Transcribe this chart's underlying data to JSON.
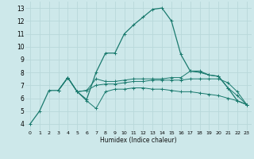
{
  "bg_color": "#cde8ea",
  "grid_color": "#b8d8da",
  "line_color": "#1a7a6e",
  "xlabel": "Humidex (Indice chaleur)",
  "xlim": [
    -0.5,
    23.5
  ],
  "ylim": [
    3.5,
    13.5
  ],
  "xticks": [
    0,
    1,
    2,
    3,
    4,
    5,
    6,
    7,
    8,
    9,
    10,
    11,
    12,
    13,
    14,
    15,
    16,
    17,
    18,
    19,
    20,
    21,
    22,
    23
  ],
  "yticks": [
    4,
    5,
    6,
    7,
    8,
    9,
    10,
    11,
    12,
    13
  ],
  "series": [
    {
      "x": [
        0,
        1,
        2,
        3,
        4,
        5,
        6,
        7,
        8,
        9,
        10,
        11,
        12,
        13,
        14,
        15,
        16,
        17,
        18,
        19,
        20,
        21,
        22,
        23
      ],
      "y": [
        4.0,
        5.0,
        6.6,
        6.6,
        7.6,
        6.5,
        5.9,
        8.0,
        9.5,
        9.5,
        11.0,
        11.7,
        12.3,
        12.9,
        13.0,
        12.0,
        9.4,
        8.1,
        8.1,
        7.8,
        7.7,
        6.8,
        5.8,
        5.5
      ]
    },
    {
      "x": [
        3,
        4,
        5,
        6,
        7,
        8,
        9,
        10,
        11,
        12,
        13,
        14,
        15,
        16,
        17,
        18,
        19,
        20,
        21,
        22,
        23
      ],
      "y": [
        6.6,
        7.6,
        6.5,
        6.6,
        7.5,
        7.3,
        7.3,
        7.4,
        7.5,
        7.5,
        7.5,
        7.5,
        7.6,
        7.6,
        8.1,
        8.0,
        7.8,
        7.7,
        6.8,
        6.2,
        5.5
      ]
    },
    {
      "x": [
        3,
        4,
        5,
        6,
        7,
        8,
        9,
        10,
        11,
        12,
        13,
        14,
        15,
        16,
        17,
        18,
        19,
        20,
        21,
        22,
        23
      ],
      "y": [
        6.6,
        7.6,
        6.5,
        6.6,
        7.0,
        7.1,
        7.1,
        7.2,
        7.3,
        7.3,
        7.4,
        7.4,
        7.4,
        7.4,
        7.5,
        7.5,
        7.5,
        7.5,
        7.2,
        6.5,
        5.5
      ]
    },
    {
      "x": [
        3,
        4,
        5,
        6,
        7,
        8,
        9,
        10,
        11,
        12,
        13,
        14,
        15,
        16,
        17,
        18,
        19,
        20,
        21,
        22,
        23
      ],
      "y": [
        6.6,
        7.6,
        6.5,
        5.8,
        5.2,
        6.5,
        6.7,
        6.7,
        6.8,
        6.8,
        6.7,
        6.7,
        6.6,
        6.5,
        6.5,
        6.4,
        6.3,
        6.2,
        6.0,
        5.8,
        5.5
      ]
    }
  ]
}
